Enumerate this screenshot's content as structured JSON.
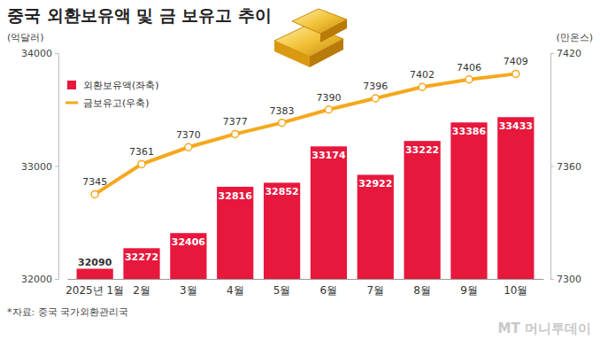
{
  "chart_data": {
    "type": "bar",
    "title": "중국 외환보유액 및 금 보유고 추이",
    "y_label": "(억달러)",
    "y2_label": "(만온스)",
    "annotations": [
      "*자료: 중국 국가외환관리국",
      "MT 머니투데이"
    ],
    "categories": [
      "2025년 1월",
      "2월",
      "3월",
      "4월",
      "5월",
      "6월",
      "7월",
      "8월",
      "9월",
      "10월"
    ],
    "series": [
      {
        "name": "외환보유액(좌축)",
        "type": "bar",
        "color": "#e8173c",
        "values": [
          32090,
          32272,
          32406,
          32816,
          32852,
          33174,
          32922,
          33222,
          33386,
          33433
        ]
      },
      {
        "name": "금보유고(우축)",
        "type": "line",
        "axis": "y2",
        "color": "#f5a81c",
        "marker": "circle",
        "values": [
          7345,
          7361,
          7370,
          7377,
          7383,
          7390,
          7396,
          7402,
          7406,
          7409
        ]
      }
    ],
    "ylim": [
      32000,
      34000
    ],
    "yticks": [
      32000,
      33000,
      34000
    ],
    "y2lim": [
      7300,
      7420
    ],
    "y2ticks": [
      7300,
      7360,
      7420
    ],
    "data_labels": true,
    "legend": "upper left",
    "grid": false
  }
}
